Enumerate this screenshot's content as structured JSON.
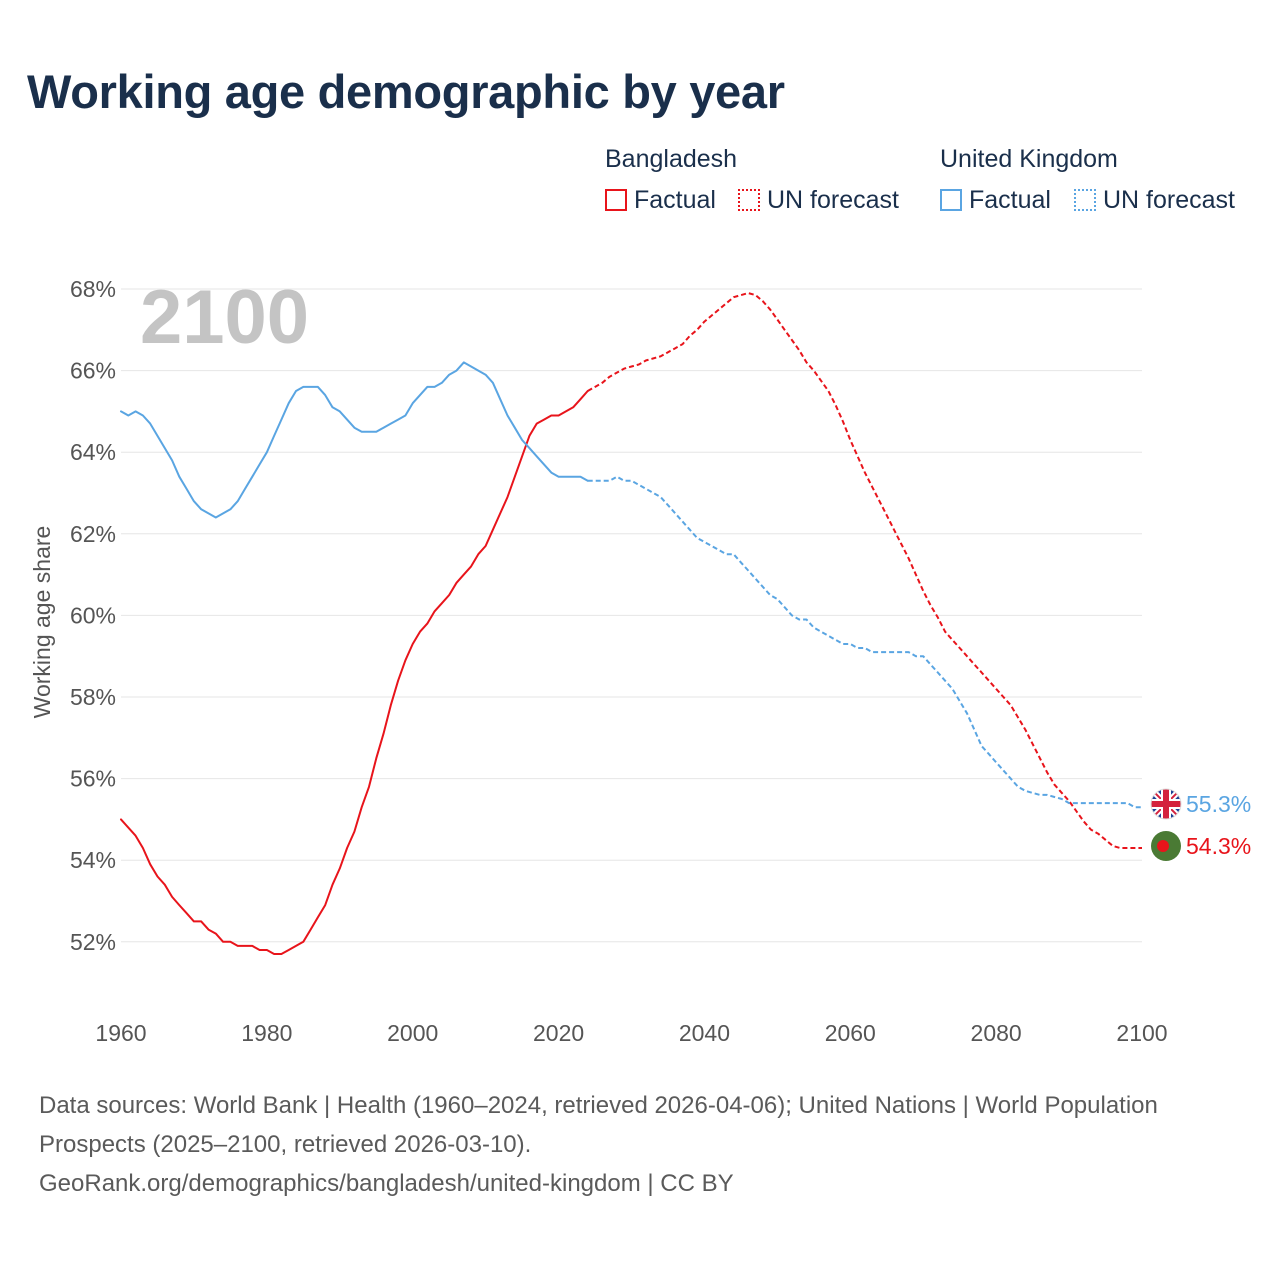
{
  "title": "Working age demographic by year",
  "legend": {
    "groups": [
      {
        "name": "Bangladesh",
        "color": "#e8141b",
        "factual": "Factual",
        "forecast": "UN forecast"
      },
      {
        "name": "United Kingdom",
        "color": "#5aa5e2",
        "factual": "Factual",
        "forecast": "UN forecast"
      }
    ]
  },
  "year_label": "2100",
  "end_labels": {
    "uk": "55.3%",
    "bd": "54.3%"
  },
  "source_text": "Data sources: World Bank | Health (1960–2024, retrieved 2026-04-06); United Nations | World Population Prospects (2025–2100, retrieved 2026-03-10).",
  "credit_text": "GeoRank.org/demographics/bangladesh/united-kingdom | CC BY",
  "chart_data": {
    "type": "line",
    "title": "Working age demographic by year",
    "xlabel": "",
    "ylabel": "Working age share",
    "xlim": [
      1960,
      2100
    ],
    "ylim": [
      50.5,
      68
    ],
    "x_ticks": [
      1960,
      1980,
      2000,
      2020,
      2040,
      2060,
      2080,
      2100
    ],
    "y_ticks": [
      52,
      54,
      56,
      58,
      60,
      62,
      64,
      66,
      68
    ],
    "y_tick_suffix": "%",
    "grid": true,
    "series": [
      {
        "name": "Bangladesh",
        "variant": "Factual",
        "color": "#e8141b",
        "dashed": false,
        "points": [
          [
            1960,
            55.0
          ],
          [
            1962,
            54.6
          ],
          [
            1963,
            54.3
          ],
          [
            1964,
            53.9
          ],
          [
            1965,
            53.6
          ],
          [
            1966,
            53.4
          ],
          [
            1967,
            53.1
          ],
          [
            1968,
            52.9
          ],
          [
            1969,
            52.7
          ],
          [
            1970,
            52.5
          ],
          [
            1971,
            52.5
          ],
          [
            1972,
            52.3
          ],
          [
            1973,
            52.2
          ],
          [
            1974,
            52.0
          ],
          [
            1975,
            52.0
          ],
          [
            1976,
            51.9
          ],
          [
            1977,
            51.9
          ],
          [
            1978,
            51.9
          ],
          [
            1979,
            51.8
          ],
          [
            1980,
            51.8
          ],
          [
            1981,
            51.7
          ],
          [
            1982,
            51.7
          ],
          [
            1983,
            51.8
          ],
          [
            1984,
            51.9
          ],
          [
            1985,
            52.0
          ],
          [
            1986,
            52.3
          ],
          [
            1987,
            52.6
          ],
          [
            1988,
            52.9
          ],
          [
            1989,
            53.4
          ],
          [
            1990,
            53.8
          ],
          [
            1991,
            54.3
          ],
          [
            1992,
            54.7
          ],
          [
            1993,
            55.3
          ],
          [
            1994,
            55.8
          ],
          [
            1995,
            56.5
          ],
          [
            1996,
            57.1
          ],
          [
            1997,
            57.8
          ],
          [
            1998,
            58.4
          ],
          [
            1999,
            58.9
          ],
          [
            2000,
            59.3
          ],
          [
            2001,
            59.6
          ],
          [
            2002,
            59.8
          ],
          [
            2003,
            60.1
          ],
          [
            2004,
            60.3
          ],
          [
            2005,
            60.5
          ],
          [
            2006,
            60.8
          ],
          [
            2007,
            61.0
          ],
          [
            2008,
            61.2
          ],
          [
            2009,
            61.5
          ],
          [
            2010,
            61.7
          ],
          [
            2011,
            62.1
          ],
          [
            2012,
            62.5
          ],
          [
            2013,
            62.9
          ],
          [
            2014,
            63.4
          ],
          [
            2015,
            63.9
          ],
          [
            2016,
            64.4
          ],
          [
            2017,
            64.7
          ],
          [
            2018,
            64.8
          ],
          [
            2019,
            64.9
          ],
          [
            2020,
            64.9
          ],
          [
            2021,
            65.0
          ],
          [
            2022,
            65.1
          ],
          [
            2023,
            65.3
          ],
          [
            2024,
            65.5
          ]
        ]
      },
      {
        "name": "Bangladesh",
        "variant": "UN forecast",
        "color": "#e8141b",
        "dashed": true,
        "points": [
          [
            2024,
            65.5
          ],
          [
            2026,
            65.7
          ],
          [
            2027,
            65.85
          ],
          [
            2028,
            65.95
          ],
          [
            2029,
            66.05
          ],
          [
            2030,
            66.1
          ],
          [
            2031,
            66.15
          ],
          [
            2032,
            66.25
          ],
          [
            2033,
            66.3
          ],
          [
            2034,
            66.35
          ],
          [
            2035,
            66.45
          ],
          [
            2036,
            66.55
          ],
          [
            2037,
            66.65
          ],
          [
            2038,
            66.85
          ],
          [
            2039,
            67.0
          ],
          [
            2040,
            67.2
          ],
          [
            2041,
            67.35
          ],
          [
            2042,
            67.5
          ],
          [
            2043,
            67.65
          ],
          [
            2044,
            67.8
          ],
          [
            2045,
            67.85
          ],
          [
            2046,
            67.9
          ],
          [
            2047,
            67.85
          ],
          [
            2048,
            67.7
          ],
          [
            2049,
            67.5
          ],
          [
            2050,
            67.25
          ],
          [
            2051,
            67.0
          ],
          [
            2052,
            66.75
          ],
          [
            2053,
            66.5
          ],
          [
            2054,
            66.2
          ],
          [
            2055,
            66.0
          ],
          [
            2056,
            65.75
          ],
          [
            2057,
            65.5
          ],
          [
            2058,
            65.15
          ],
          [
            2059,
            64.75
          ],
          [
            2060,
            64.3
          ],
          [
            2061,
            63.9
          ],
          [
            2062,
            63.5
          ],
          [
            2063,
            63.15
          ],
          [
            2064,
            62.8
          ],
          [
            2065,
            62.45
          ],
          [
            2066,
            62.1
          ],
          [
            2067,
            61.75
          ],
          [
            2068,
            61.4
          ],
          [
            2069,
            61.0
          ],
          [
            2070,
            60.6
          ],
          [
            2071,
            60.25
          ],
          [
            2072,
            59.95
          ],
          [
            2073,
            59.6
          ],
          [
            2074,
            59.4
          ],
          [
            2075,
            59.2
          ],
          [
            2076,
            59.0
          ],
          [
            2077,
            58.8
          ],
          [
            2078,
            58.6
          ],
          [
            2079,
            58.4
          ],
          [
            2080,
            58.2
          ],
          [
            2081,
            58.0
          ],
          [
            2082,
            57.8
          ],
          [
            2083,
            57.5
          ],
          [
            2084,
            57.2
          ],
          [
            2085,
            56.85
          ],
          [
            2086,
            56.5
          ],
          [
            2087,
            56.15
          ],
          [
            2088,
            55.85
          ],
          [
            2089,
            55.65
          ],
          [
            2090,
            55.45
          ],
          [
            2091,
            55.2
          ],
          [
            2092,
            54.95
          ],
          [
            2093,
            54.75
          ],
          [
            2094,
            54.65
          ],
          [
            2095,
            54.5
          ],
          [
            2096,
            54.35
          ],
          [
            2097,
            54.3
          ],
          [
            2098,
            54.3
          ],
          [
            2100,
            54.3
          ]
        ]
      },
      {
        "name": "United Kingdom",
        "variant": "Factual",
        "color": "#5aa5e2",
        "dashed": false,
        "points": [
          [
            1960,
            65.0
          ],
          [
            1961,
            64.9
          ],
          [
            1962,
            65.0
          ],
          [
            1963,
            64.9
          ],
          [
            1964,
            64.7
          ],
          [
            1965,
            64.4
          ],
          [
            1966,
            64.1
          ],
          [
            1967,
            63.8
          ],
          [
            1968,
            63.4
          ],
          [
            1969,
            63.1
          ],
          [
            1970,
            62.8
          ],
          [
            1971,
            62.6
          ],
          [
            1972,
            62.5
          ],
          [
            1973,
            62.4
          ],
          [
            1974,
            62.5
          ],
          [
            1975,
            62.6
          ],
          [
            1976,
            62.8
          ],
          [
            1977,
            63.1
          ],
          [
            1978,
            63.4
          ],
          [
            1979,
            63.7
          ],
          [
            1980,
            64.0
          ],
          [
            1981,
            64.4
          ],
          [
            1982,
            64.8
          ],
          [
            1983,
            65.2
          ],
          [
            1984,
            65.5
          ],
          [
            1985,
            65.6
          ],
          [
            1986,
            65.6
          ],
          [
            1987,
            65.6
          ],
          [
            1988,
            65.4
          ],
          [
            1989,
            65.1
          ],
          [
            1990,
            65.0
          ],
          [
            1991,
            64.8
          ],
          [
            1992,
            64.6
          ],
          [
            1993,
            64.5
          ],
          [
            1994,
            64.5
          ],
          [
            1995,
            64.5
          ],
          [
            1996,
            64.6
          ],
          [
            1997,
            64.7
          ],
          [
            1998,
            64.8
          ],
          [
            1999,
            64.9
          ],
          [
            2000,
            65.2
          ],
          [
            2001,
            65.4
          ],
          [
            2002,
            65.6
          ],
          [
            2003,
            65.6
          ],
          [
            2004,
            65.7
          ],
          [
            2005,
            65.9
          ],
          [
            2006,
            66.0
          ],
          [
            2007,
            66.2
          ],
          [
            2008,
            66.1
          ],
          [
            2009,
            66.0
          ],
          [
            2010,
            65.9
          ],
          [
            2011,
            65.7
          ],
          [
            2012,
            65.3
          ],
          [
            2013,
            64.9
          ],
          [
            2014,
            64.6
          ],
          [
            2015,
            64.3
          ],
          [
            2016,
            64.1
          ],
          [
            2017,
            63.9
          ],
          [
            2018,
            63.7
          ],
          [
            2019,
            63.5
          ],
          [
            2020,
            63.4
          ],
          [
            2021,
            63.4
          ],
          [
            2022,
            63.4
          ],
          [
            2023,
            63.4
          ],
          [
            2024,
            63.3
          ]
        ]
      },
      {
        "name": "United Kingdom",
        "variant": "UN forecast",
        "color": "#5aa5e2",
        "dashed": true,
        "points": [
          [
            2024,
            63.3
          ],
          [
            2027,
            63.3
          ],
          [
            2028,
            63.4
          ],
          [
            2029,
            63.3
          ],
          [
            2030,
            63.3
          ],
          [
            2031,
            63.2
          ],
          [
            2032,
            63.1
          ],
          [
            2033,
            63.0
          ],
          [
            2034,
            62.9
          ],
          [
            2035,
            62.7
          ],
          [
            2036,
            62.5
          ],
          [
            2037,
            62.3
          ],
          [
            2038,
            62.1
          ],
          [
            2039,
            61.9
          ],
          [
            2040,
            61.8
          ],
          [
            2041,
            61.7
          ],
          [
            2042,
            61.6
          ],
          [
            2043,
            61.5
          ],
          [
            2044,
            61.5
          ],
          [
            2045,
            61.3
          ],
          [
            2046,
            61.1
          ],
          [
            2047,
            60.9
          ],
          [
            2048,
            60.7
          ],
          [
            2049,
            60.5
          ],
          [
            2050,
            60.4
          ],
          [
            2051,
            60.2
          ],
          [
            2052,
            60.0
          ],
          [
            2053,
            59.9
          ],
          [
            2054,
            59.9
          ],
          [
            2055,
            59.7
          ],
          [
            2056,
            59.6
          ],
          [
            2057,
            59.5
          ],
          [
            2058,
            59.4
          ],
          [
            2059,
            59.3
          ],
          [
            2060,
            59.3
          ],
          [
            2061,
            59.2
          ],
          [
            2062,
            59.2
          ],
          [
            2063,
            59.1
          ],
          [
            2064,
            59.1
          ],
          [
            2065,
            59.1
          ],
          [
            2066,
            59.1
          ],
          [
            2067,
            59.1
          ],
          [
            2068,
            59.1
          ],
          [
            2069,
            59.0
          ],
          [
            2070,
            59.0
          ],
          [
            2071,
            58.8
          ],
          [
            2072,
            58.6
          ],
          [
            2073,
            58.4
          ],
          [
            2074,
            58.2
          ],
          [
            2075,
            57.9
          ],
          [
            2076,
            57.6
          ],
          [
            2077,
            57.2
          ],
          [
            2078,
            56.8
          ],
          [
            2079,
            56.6
          ],
          [
            2080,
            56.4
          ],
          [
            2081,
            56.2
          ],
          [
            2082,
            56.0
          ],
          [
            2083,
            55.8
          ],
          [
            2084,
            55.7
          ],
          [
            2085,
            55.65
          ],
          [
            2086,
            55.6
          ],
          [
            2087,
            55.6
          ],
          [
            2088,
            55.55
          ],
          [
            2089,
            55.5
          ],
          [
            2090,
            55.4
          ],
          [
            2091,
            55.4
          ],
          [
            2092,
            55.4
          ],
          [
            2093,
            55.4
          ],
          [
            2094,
            55.4
          ],
          [
            2095,
            55.4
          ],
          [
            2096,
            55.4
          ],
          [
            2097,
            55.4
          ],
          [
            2098,
            55.4
          ],
          [
            2099,
            55.3
          ],
          [
            2100,
            55.3
          ]
        ]
      }
    ],
    "end_values": {
      "United Kingdom": 55.3,
      "Bangladesh": 54.3
    }
  }
}
